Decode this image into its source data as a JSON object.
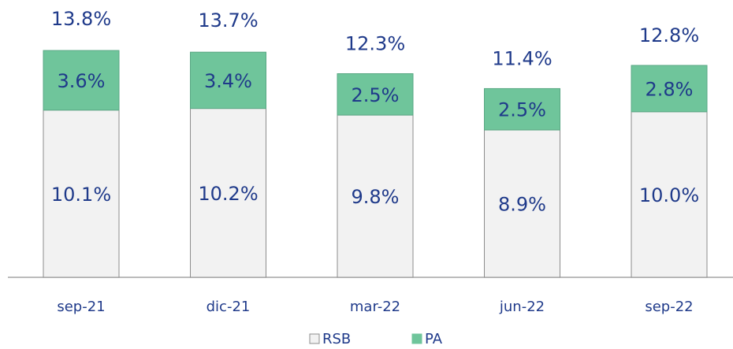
{
  "chart_data": {
    "type": "stacked_bar",
    "categories": [
      "sep-21",
      "dic-21",
      "mar-22",
      "jun-22",
      "sep-22"
    ],
    "series": [
      {
        "name": "RSB",
        "color": "#f2f2f2",
        "values": [
          10.1,
          10.2,
          9.8,
          8.9,
          10.0
        ],
        "value_labels": [
          "10.1%",
          "10.2%",
          "9.8%",
          "8.9%",
          "10.0%"
        ]
      },
      {
        "name": "PA",
        "color": "#6fc59b",
        "values": [
          3.6,
          3.4,
          2.5,
          2.5,
          2.8
        ],
        "value_labels": [
          "3.6%",
          "3.4%",
          "2.5%",
          "2.5%",
          "2.8%"
        ]
      }
    ],
    "totals": [
      13.8,
      13.7,
      12.3,
      11.4,
      12.8
    ],
    "totals_labels": [
      "13.8%",
      "13.7%",
      "12.3%",
      "11.4%",
      "12.8%"
    ],
    "legend": "bottom"
  }
}
